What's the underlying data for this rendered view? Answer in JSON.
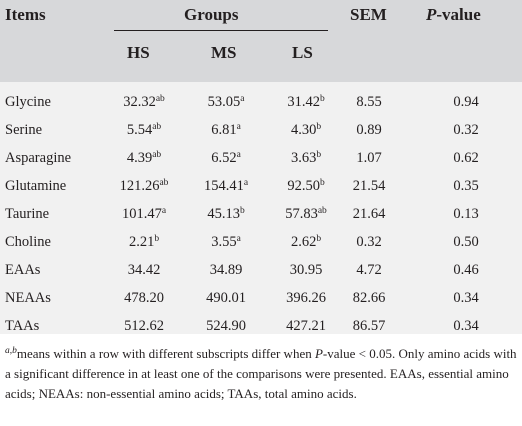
{
  "header": {
    "items": "Items",
    "groups": "Groups",
    "sem": "SEM",
    "p_letter": "P",
    "p_rest": "-value",
    "hs": "HS",
    "ms": "MS",
    "ls": "LS"
  },
  "rows": [
    {
      "item": "Glycine",
      "hs": "32.32",
      "hs_sup": "ab",
      "ms": "53.05",
      "ms_sup": "a",
      "ls": "31.42",
      "ls_sup": "b",
      "sem": "8.55",
      "p": "0.94"
    },
    {
      "item": "Serine",
      "hs": "5.54",
      "hs_sup": "ab",
      "ms": "6.81",
      "ms_sup": "a",
      "ls": "4.30",
      "ls_sup": "b",
      "sem": "0.89",
      "p": "0.32"
    },
    {
      "item": "Asparagine",
      "hs": "4.39",
      "hs_sup": "ab",
      "ms": "6.52",
      "ms_sup": "a",
      "ls": "3.63",
      "ls_sup": "b",
      "sem": "1.07",
      "p": "0.62"
    },
    {
      "item": "Glutamine",
      "hs": "121.26",
      "hs_sup": "ab",
      "ms": "154.41",
      "ms_sup": "a",
      "ls": "92.50",
      "ls_sup": "b",
      "sem": "21.54",
      "p": "0.35"
    },
    {
      "item": "Taurine",
      "hs": "101.47",
      "hs_sup": "a",
      "ms": "45.13",
      "ms_sup": "b",
      "ls": "57.83",
      "ls_sup": "ab",
      "sem": "21.64",
      "p": "0.13"
    },
    {
      "item": "Choline",
      "hs": "2.21",
      "hs_sup": "b",
      "ms": "3.55",
      "ms_sup": "a",
      "ls": "2.62",
      "ls_sup": "b",
      "sem": "0.32",
      "p": "0.50"
    },
    {
      "item": "EAAs",
      "hs": "34.42",
      "hs_sup": "",
      "ms": "34.89",
      "ms_sup": "",
      "ls": "30.95",
      "ls_sup": "",
      "sem": "4.72",
      "p": "0.46"
    },
    {
      "item": "NEAAs",
      "hs": "478.20",
      "hs_sup": "",
      "ms": "490.01",
      "ms_sup": "",
      "ls": "396.26",
      "ls_sup": "",
      "sem": "82.66",
      "p": "0.34"
    },
    {
      "item": "TAAs",
      "hs": "512.62",
      "hs_sup": "",
      "ms": "524.90",
      "ms_sup": "",
      "ls": "427.21",
      "ls_sup": "",
      "sem": "86.57",
      "p": "0.34"
    }
  ],
  "footnote": {
    "sup": "a,b",
    "text1": "means within a row with different subscripts differ when ",
    "p_letter": "P",
    "text2": "-value < 0.05. Only amino acids with a significant difference in at least one of the comparisons were presented. EAAs, essential amino acids; NEAAs: non-essential amino acids; TAAs, total amino acids."
  }
}
